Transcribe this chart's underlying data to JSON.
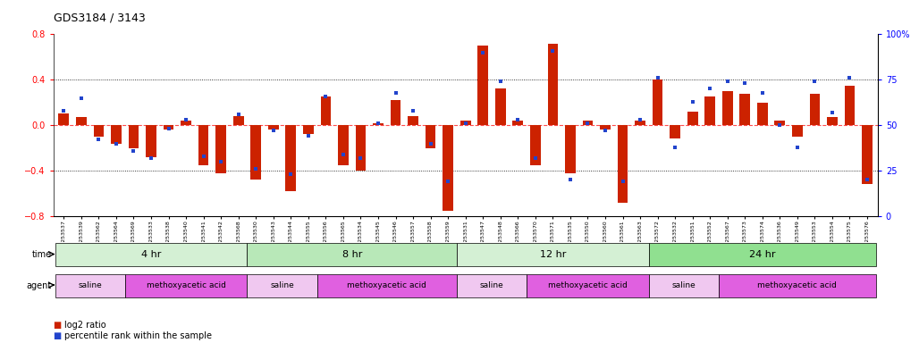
{
  "title": "GDS3184 / 3143",
  "samples": [
    "GSM253537",
    "GSM253539",
    "GSM253562",
    "GSM253564",
    "GSM253569",
    "GSM253533",
    "GSM253538",
    "GSM253540",
    "GSM253541",
    "GSM253542",
    "GSM253568",
    "GSM253530",
    "GSM253543",
    "GSM253544",
    "GSM253555",
    "GSM253556",
    "GSM253565",
    "GSM253534",
    "GSM253545",
    "GSM253546",
    "GSM253557",
    "GSM253558",
    "GSM253559",
    "GSM253531",
    "GSM253547",
    "GSM253548",
    "GSM253566",
    "GSM253570",
    "GSM253571",
    "GSM253535",
    "GSM253550",
    "GSM253560",
    "GSM253561",
    "GSM253563",
    "GSM253572",
    "GSM253532",
    "GSM253551",
    "GSM253552",
    "GSM253567",
    "GSM253573",
    "GSM253574",
    "GSM253536",
    "GSM253549",
    "GSM253553",
    "GSM253554",
    "GSM253575",
    "GSM253576"
  ],
  "log2_ratio": [
    0.1,
    0.07,
    -0.1,
    -0.16,
    -0.2,
    -0.28,
    -0.04,
    0.04,
    -0.35,
    -0.42,
    0.08,
    -0.48,
    -0.04,
    -0.58,
    -0.08,
    0.25,
    -0.35,
    -0.4,
    0.02,
    0.22,
    0.08,
    -0.2,
    -0.75,
    0.04,
    0.7,
    0.32,
    0.04,
    -0.35,
    0.72,
    -0.42,
    0.04,
    -0.04,
    -0.68,
    0.04,
    0.4,
    -0.12,
    0.12,
    0.25,
    0.3,
    0.28,
    0.2,
    0.04,
    -0.1,
    0.28,
    0.07,
    0.35,
    -0.52
  ],
  "percentile": [
    58,
    65,
    42,
    40,
    36,
    32,
    48,
    53,
    33,
    30,
    56,
    26,
    47,
    23,
    44,
    66,
    34,
    32,
    51,
    68,
    58,
    40,
    19,
    51,
    90,
    74,
    53,
    32,
    91,
    20,
    51,
    47,
    19,
    53,
    76,
    38,
    63,
    70,
    74,
    73,
    68,
    50,
    38,
    74,
    57,
    76,
    20
  ],
  "time_groups": [
    {
      "label": "4 hr",
      "start": 0,
      "end": 11,
      "color": "#d4f0d4"
    },
    {
      "label": "8 hr",
      "start": 11,
      "end": 23,
      "color": "#b8e8b8"
    },
    {
      "label": "12 hr",
      "start": 23,
      "end": 34,
      "color": "#d4f0d4"
    },
    {
      "label": "24 hr",
      "start": 34,
      "end": 47,
      "color": "#90e090"
    }
  ],
  "agent_groups": [
    {
      "label": "saline",
      "start": 0,
      "end": 4,
      "color": "#f0c8f0"
    },
    {
      "label": "methoxyacetic acid",
      "start": 4,
      "end": 11,
      "color": "#e060e0"
    },
    {
      "label": "saline",
      "start": 11,
      "end": 15,
      "color": "#f0c8f0"
    },
    {
      "label": "methoxyacetic acid",
      "start": 15,
      "end": 23,
      "color": "#e060e0"
    },
    {
      "label": "saline",
      "start": 23,
      "end": 27,
      "color": "#f0c8f0"
    },
    {
      "label": "methoxyacetic acid",
      "start": 27,
      "end": 34,
      "color": "#e060e0"
    },
    {
      "label": "saline",
      "start": 34,
      "end": 38,
      "color": "#f0c8f0"
    },
    {
      "label": "methoxyacetic acid",
      "start": 38,
      "end": 47,
      "color": "#e060e0"
    }
  ],
  "bar_color": "#cc2200",
  "dot_color": "#2244cc",
  "ylim": [
    -0.8,
    0.8
  ],
  "y2lim": [
    0,
    100
  ],
  "yticks": [
    -0.8,
    -0.4,
    0.0,
    0.4,
    0.8
  ],
  "y2ticks": [
    0,
    25,
    50,
    75,
    100
  ],
  "dotted_lines": [
    -0.4,
    0.4
  ],
  "zero_line_y": 0.0,
  "background_color": "#ffffff",
  "xtick_area_color": "#e0e0e0"
}
